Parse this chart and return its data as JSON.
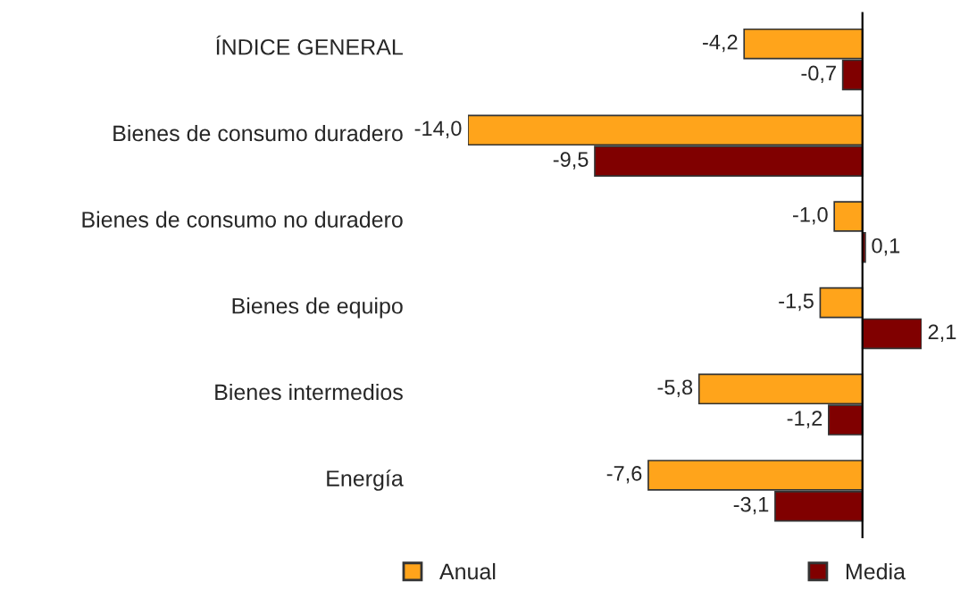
{
  "chart_data": {
    "type": "bar",
    "orientation": "horizontal",
    "categories": [
      "ÍNDICE GENERAL",
      "Bienes de consumo duradero",
      "Bienes de consumo no duradero",
      "Bienes de equipo",
      "Bienes intermedios",
      "Energía"
    ],
    "series": [
      {
        "name": "Anual",
        "color": "#ffa41b",
        "values": [
          -4.2,
          -14.0,
          -1.0,
          -1.5,
          -5.8,
          -7.6
        ],
        "value_labels": [
          "-4,2",
          "-14,0",
          "-1,0",
          "-1,5",
          "-5,8",
          "-7,6"
        ]
      },
      {
        "name": "Media",
        "color": "#800000",
        "values": [
          -0.7,
          -9.5,
          0.1,
          2.1,
          -1.2,
          -3.1
        ],
        "value_labels": [
          "-0,7",
          "-9,5",
          "0,1",
          "2,1",
          "-1,2",
          "-3,1"
        ]
      }
    ],
    "tick_labels": "y",
    "legend": "bottom",
    "grid": false
  }
}
